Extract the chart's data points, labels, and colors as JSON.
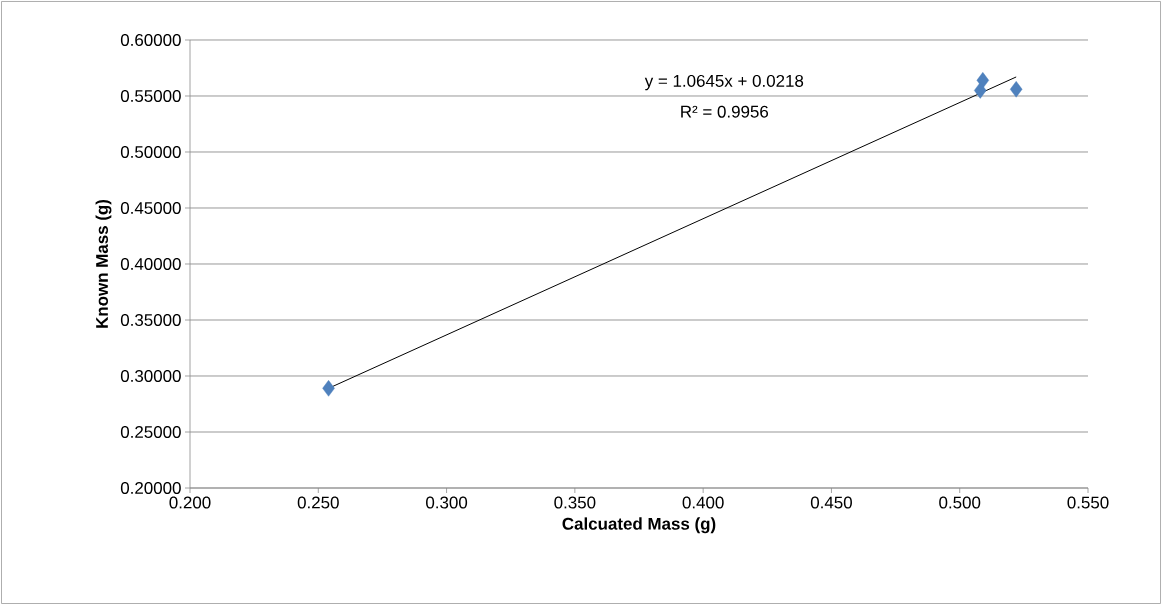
{
  "chart_data": {
    "type": "scatter",
    "xlabel": "Calcuated Mass (g)",
    "ylabel": "Known Mass (g)",
    "series": [
      {
        "color": "#4f81bd",
        "marker": "diamond",
        "x": [
          0.254,
          0.509,
          0.508,
          0.522
        ],
        "values": [
          0.289,
          0.564,
          0.555,
          0.556
        ]
      },
      {
        "type": "line",
        "color": "#000000",
        "marker": "none",
        "line_style": "solid",
        "x": [
          0.254,
          0.522
        ],
        "values": [
          0.289,
          0.567
        ]
      }
    ],
    "annotations": [
      "y = 1.0645x + 0.0218",
      "R² = 0.9956"
    ],
    "xlim": [
      0.2,
      0.55
    ],
    "xticks": [
      {
        "value": 0.2,
        "label": "0.200"
      },
      {
        "value": 0.25,
        "label": "0.250"
      },
      {
        "value": 0.3,
        "label": "0.300"
      },
      {
        "value": 0.35,
        "label": "0.350"
      },
      {
        "value": 0.4,
        "label": "0.400"
      },
      {
        "value": 0.45,
        "label": "0.450"
      },
      {
        "value": 0.5,
        "label": "0.500"
      },
      {
        "value": 0.55,
        "label": "0.550"
      }
    ],
    "ylim": [
      0.2,
      0.6
    ],
    "yticks": [
      {
        "value": 0.2,
        "label": "0.20000"
      },
      {
        "value": 0.25,
        "label": "0.25000"
      },
      {
        "value": 0.3,
        "label": "0.30000"
      },
      {
        "value": 0.35,
        "label": "0.35000"
      },
      {
        "value": 0.4,
        "label": "0.40000"
      },
      {
        "value": 0.45,
        "label": "0.45000"
      },
      {
        "value": 0.5,
        "label": "0.50000"
      },
      {
        "value": 0.55,
        "label": "0.55000"
      },
      {
        "value": 0.6,
        "label": "0.60000"
      }
    ],
    "grid": "y"
  }
}
